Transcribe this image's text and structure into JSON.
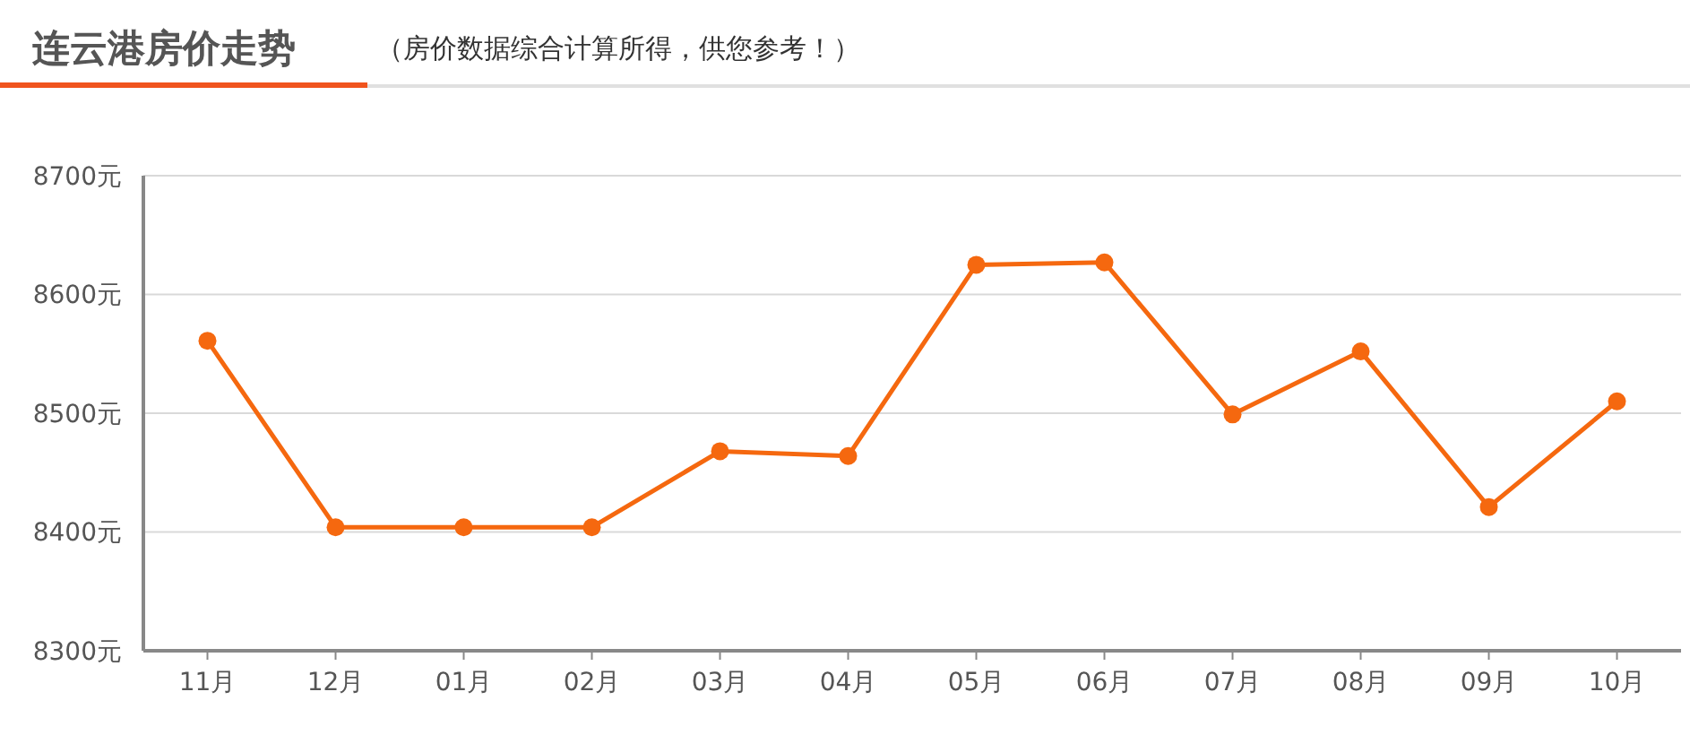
{
  "chart_data": {
    "type": "line",
    "title": "连云港房价走势",
    "subtitle": "（房价数据综合计算所得，供您参考！）",
    "categories": [
      "11月",
      "12月",
      "01月",
      "02月",
      "03月",
      "04月",
      "05月",
      "06月",
      "07月",
      "08月",
      "09月",
      "10月"
    ],
    "series": [
      {
        "color": "#f5680f",
        "values": [
          8561,
          8404,
          8404,
          8404,
          8468,
          8464,
          8625,
          8627,
          8499,
          8552,
          8421,
          8510
        ]
      }
    ],
    "ylim": [
      8300,
      8700
    ],
    "yticks": [
      {
        "value": 8300,
        "label": "8300元"
      },
      {
        "value": 8400,
        "label": "8400元"
      },
      {
        "value": 8500,
        "label": "8500元"
      },
      {
        "value": 8600,
        "label": "8600元"
      },
      {
        "value": 8700,
        "label": "8700元"
      }
    ],
    "grid": "y",
    "marker": "circle",
    "line_style": "solid"
  }
}
